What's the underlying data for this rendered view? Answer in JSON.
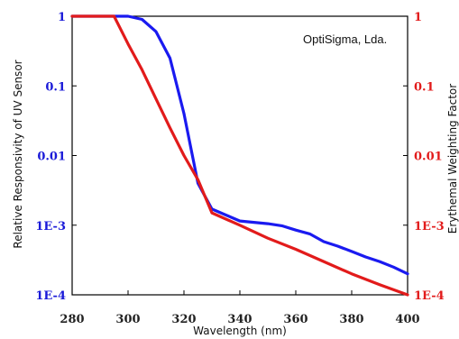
{
  "colors": {
    "left_series": "#1a1af0",
    "right_series": "#e21b1b",
    "left_ticks": "#1a1ad8",
    "right_ticks": "#e21b1b",
    "axis": "#000000"
  },
  "chart_data": {
    "type": "line",
    "title": "",
    "annotation": "OptiSigma, Lda.",
    "xlabel": "Wavelength (nm)",
    "ylabel_left": "Relative Responsivity of UV Sensor",
    "ylabel_right": "Erythemal Weighting Factor",
    "xlim": [
      280,
      400
    ],
    "ylim": [
      0.0001,
      1
    ],
    "yscale": "log",
    "grid": false,
    "x_ticks": [
      "280",
      "300",
      "320",
      "340",
      "360",
      "380",
      "400"
    ],
    "y_left_ticks": [
      "1",
      "0.1",
      "0.01",
      "1E-3",
      "1E-4"
    ],
    "y_right_ticks": [
      "1",
      "0.1",
      "0.01",
      "1E-3",
      "1E-4"
    ],
    "series": [
      {
        "axis": "left",
        "color": "#1a1af0",
        "x": [
          280,
          290,
          300,
          305,
          310,
          315,
          320,
          325,
          330,
          335,
          340,
          345,
          350,
          355,
          360,
          365,
          370,
          375,
          380,
          385,
          390,
          395,
          400
        ],
        "y": [
          1,
          1,
          1,
          0.9,
          0.6,
          0.25,
          0.04,
          0.004,
          0.0017,
          0.0014,
          0.00115,
          0.0011,
          0.00105,
          0.00098,
          0.00085,
          0.00075,
          0.00058,
          0.0005,
          0.00042,
          0.00035,
          0.0003,
          0.00025,
          0.0002
        ]
      },
      {
        "axis": "right",
        "color": "#e21b1b",
        "x": [
          280,
          290,
          295,
          300,
          305,
          310,
          315,
          320,
          325,
          330,
          340,
          350,
          360,
          370,
          380,
          390,
          400
        ],
        "y": [
          1,
          1,
          1,
          0.4,
          0.17,
          0.065,
          0.025,
          0.01,
          0.0045,
          0.0015,
          0.001,
          0.00065,
          0.00045,
          0.0003,
          0.0002,
          0.00014,
          0.0001
        ]
      }
    ]
  }
}
